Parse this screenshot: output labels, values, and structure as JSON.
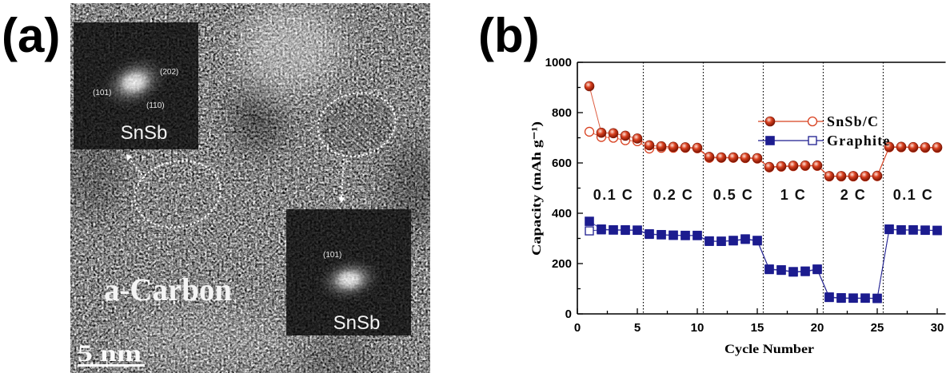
{
  "panel_a": {
    "label": "(a)",
    "inset_top": {
      "title": "SnSb",
      "spots": [
        "(202)",
        "(101)",
        "(110)"
      ]
    },
    "inset_bottom": {
      "title": "SnSb",
      "spots": [
        "(101)"
      ]
    },
    "matrix_label": "a-Carbon",
    "scale_bar": "5 nm"
  },
  "panel_b": {
    "label": "(b)"
  },
  "chart_data": {
    "type": "line",
    "xlabel": "Cycle Number",
    "ylabel": "Capacity (mAh g⁻¹)",
    "xlim": [
      0,
      30.7
    ],
    "ylim": [
      0,
      1000
    ],
    "xticks": [
      0,
      5,
      10,
      15,
      20,
      25,
      30
    ],
    "yticks": [
      0,
      200,
      400,
      600,
      800,
      1000
    ],
    "grid": false,
    "legend": {
      "position": "top-right"
    },
    "x": [
      1,
      2,
      3,
      4,
      5,
      6,
      7,
      8,
      9,
      10,
      11,
      12,
      13,
      14,
      15,
      16,
      17,
      18,
      19,
      20,
      21,
      22,
      23,
      24,
      25,
      26,
      27,
      28,
      29,
      30
    ],
    "dividers": [
      5.5,
      10.5,
      15.5,
      20.5,
      25.5
    ],
    "rate_segments": [
      {
        "label": "0.1 C",
        "cycles": [
          1,
          5
        ]
      },
      {
        "label": "0.2 C",
        "cycles": [
          6,
          10
        ]
      },
      {
        "label": "0.5 C",
        "cycles": [
          11,
          15
        ]
      },
      {
        "label": "1 C",
        "cycles": [
          16,
          20
        ]
      },
      {
        "label": "2 C",
        "cycles": [
          21,
          25
        ]
      },
      {
        "label": "0.1 C",
        "cycles": [
          26,
          30
        ]
      }
    ],
    "series": [
      {
        "name": "SnSb/C",
        "marker": "circle",
        "color": "#d8401f",
        "filled_markers": [
          905,
          720,
          718,
          708,
          697,
          670,
          666,
          664,
          662,
          660,
          624,
          622,
          622,
          621,
          619,
          584,
          587,
          589,
          590,
          590,
          548,
          548,
          548,
          548,
          549,
          664,
          664,
          663,
          662,
          662
        ],
        "open_markers": [
          724,
          703,
          700,
          690,
          686,
          657,
          660,
          660,
          660,
          658,
          620,
          620,
          620,
          619,
          617,
          582,
          585,
          587,
          588,
          588,
          546,
          546,
          546,
          546,
          547,
          662,
          662,
          661,
          660,
          660
        ]
      },
      {
        "name": "Graphite",
        "marker": "square",
        "color": "#1c1c8f",
        "filled_markers": [
          368,
          337,
          334,
          334,
          333,
          318,
          315,
          313,
          312,
          312,
          290,
          289,
          292,
          298,
          292,
          178,
          175,
          168,
          170,
          178,
          67,
          64,
          63,
          63,
          62,
          337,
          334,
          334,
          333,
          332
        ],
        "open_markers": [
          330,
          334,
          333,
          332,
          332,
          316,
          314,
          312,
          311,
          311,
          288,
          288,
          290,
          296,
          290,
          176,
          173,
          166,
          168,
          176,
          65,
          62,
          62,
          62,
          61,
          335,
          333,
          333,
          332,
          331
        ]
      }
    ]
  }
}
